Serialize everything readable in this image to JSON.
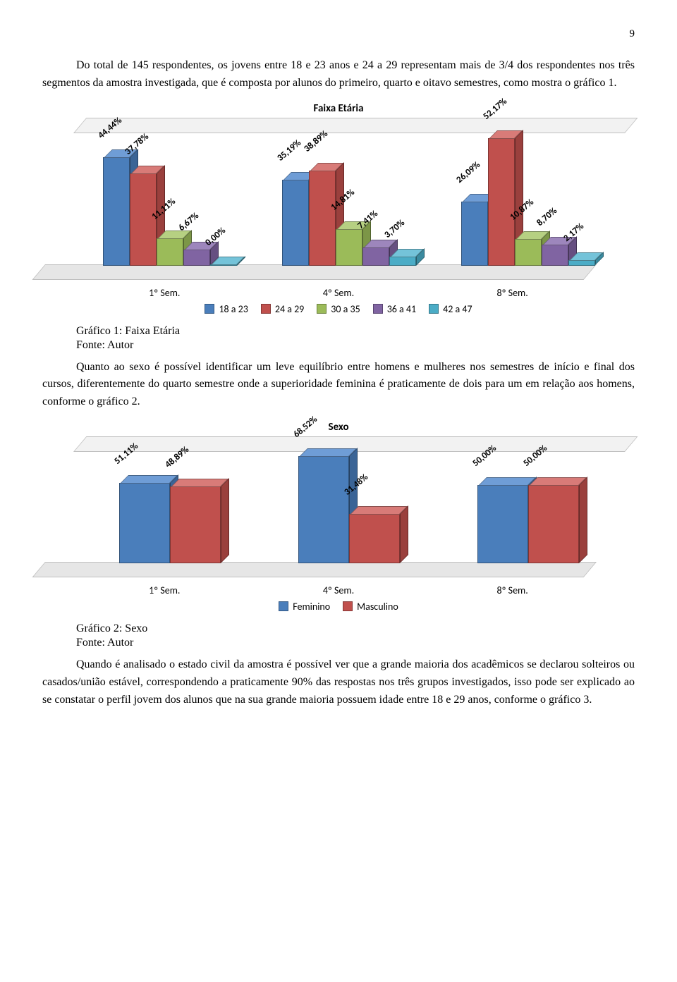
{
  "page_number": "9",
  "para1": "Do total de 145 respondentes, os jovens entre 18 e 23 anos e 24 a 29 representam mais de 3/4 dos respondentes nos três segmentos da amostra investigada, que é composta por alunos do primeiro, quarto e oitavo semestres, como mostra o gráfico 1.",
  "chart1": {
    "title": "Faixa Etária",
    "categories": [
      "1º Sem.",
      "4º Sem.",
      "8º Sem."
    ],
    "series_labels": [
      "18 a 23",
      "24 a 29",
      "30 a 35",
      "36 a 41",
      "42 a 47"
    ],
    "series_colors": [
      "#4a7ebb",
      "#c0504d",
      "#9bbb59",
      "#8064a2",
      "#4bacc6"
    ],
    "series_colors_top": [
      "#6f9dd6",
      "#d87b78",
      "#b6d082",
      "#9d86bc",
      "#74c3d9"
    ],
    "series_colors_side": [
      "#3a6496",
      "#9a403d",
      "#7c9647",
      "#664f81",
      "#3a8a9f"
    ],
    "labels": [
      [
        "44,44%",
        "37,78%",
        "11,11%",
        "6,67%",
        "0,00%"
      ],
      [
        "35,19%",
        "38,89%",
        "14,81%",
        "7,41%",
        "3,70%"
      ],
      [
        "26,09%",
        "52,17%",
        "10,87%",
        "8,70%",
        "2,17%"
      ]
    ],
    "values": [
      [
        44.44,
        37.78,
        11.11,
        6.67,
        0.0
      ],
      [
        35.19,
        38.89,
        14.81,
        7.41,
        3.7
      ],
      [
        26.09,
        52.17,
        10.87,
        8.7,
        2.17
      ]
    ],
    "max": 55,
    "caption": "Gráfico 1: Faixa Etária",
    "source": "Fonte: Autor"
  },
  "para2": "Quanto ao sexo é possível identificar um leve equilíbrio entre homens e mulheres nos semestres de início e final dos cursos, diferentemente do quarto semestre onde a superioridade feminina é praticamente de dois para um em relação aos homens, conforme o gráfico 2.",
  "chart2": {
    "title": "Sexo",
    "categories": [
      "1º Sem.",
      "4º Sem.",
      "8º Sem."
    ],
    "series_labels": [
      "Feminino",
      "Masculino"
    ],
    "series_colors": [
      "#4a7ebb",
      "#c0504d"
    ],
    "series_colors_top": [
      "#6f9dd6",
      "#d87b78"
    ],
    "series_colors_side": [
      "#3a6496",
      "#9a403d"
    ],
    "labels": [
      [
        "51,11%",
        "48,89%"
      ],
      [
        "68,52%",
        "31,48%"
      ],
      [
        "50,00%",
        "50,00%"
      ]
    ],
    "values": [
      [
        51.11,
        48.89
      ],
      [
        68.52,
        31.48
      ],
      [
        50.0,
        50.0
      ]
    ],
    "max": 72,
    "caption": "Gráfico 2: Sexo",
    "source": "Fonte: Autor"
  },
  "para3": "Quando é analisado o estado civil da amostra é possível ver que a grande maioria dos acadêmicos se declarou solteiros ou casados/união estável, correspondendo a praticamente 90% das respostas nos três grupos investigados, isso pode ser explicado ao se constatar o perfil jovem dos alunos que na sua grande maioria possuem idade entre 18 e 29 anos, conforme o gráfico 3."
}
